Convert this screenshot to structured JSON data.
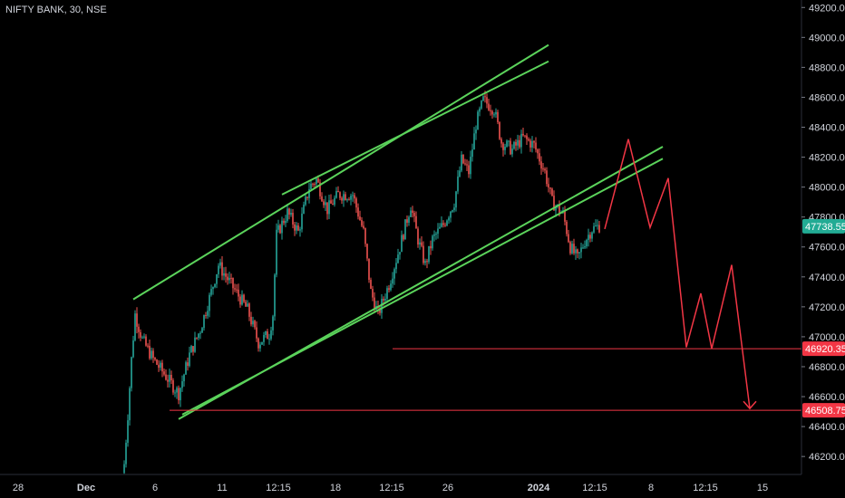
{
  "chart_data": {
    "type": "candlestick",
    "title": "NIFTY BANK, 30, NSE",
    "colors": {
      "up": "#26a69a",
      "down": "#ef5350",
      "channel": "#5bd35b",
      "projection": "#f23645",
      "background": "#000000",
      "axis_text": "#d1d4dc"
    },
    "price_axis": {
      "min": 46080,
      "max": 49250,
      "ticks": [
        46200,
        46400,
        46600,
        46800,
        47000,
        47200,
        47400,
        47600,
        47800,
        48000,
        48200,
        48400,
        48600,
        48800,
        49000,
        49200
      ]
    },
    "price_tick_labels": [
      "46200.00",
      "46400.00",
      "46600.00",
      "46800.00",
      "47000.00",
      "47200.00",
      "47400.00",
      "47600.00",
      "47800.00",
      "48000.00",
      "48200.00",
      "48400.00",
      "48600.00",
      "48800.00",
      "49000.00",
      "49200.00"
    ],
    "time_axis": {
      "labels": [
        "28",
        "Dec",
        "6",
        "11",
        "12:15",
        "18",
        "12:15",
        "26",
        "2024",
        "12:15",
        "8",
        "12:15",
        "15"
      ],
      "bold": [
        "Dec",
        "2024"
      ]
    },
    "levels": [
      {
        "price": 46920.35,
        "label": "46920.35"
      },
      {
        "price": 46508.75,
        "label": "46508.75"
      }
    ],
    "last_price": {
      "price": 47738.55,
      "label": "47738.55"
    },
    "ohlc_waypoints": [
      {
        "t": 0,
        "close": 46150
      },
      {
        "t": 2,
        "close": 46480
      },
      {
        "t": 4,
        "close": 46850
      },
      {
        "t": 6,
        "close": 47150
      },
      {
        "t": 10,
        "close": 46980
      },
      {
        "t": 16,
        "close": 46850
      },
      {
        "t": 24,
        "close": 46720
      },
      {
        "t": 30,
        "close": 46620
      },
      {
        "t": 36,
        "close": 46880
      },
      {
        "t": 42,
        "close": 47050
      },
      {
        "t": 48,
        "close": 47300
      },
      {
        "t": 52,
        "close": 47480
      },
      {
        "t": 60,
        "close": 47330
      },
      {
        "t": 68,
        "close": 47180
      },
      {
        "t": 74,
        "close": 46960
      },
      {
        "t": 80,
        "close": 47020
      },
      {
        "t": 82,
        "close": 47150
      },
      {
        "t": 84,
        "close": 47680
      },
      {
        "t": 90,
        "close": 47830
      },
      {
        "t": 96,
        "close": 47700
      },
      {
        "t": 102,
        "close": 48000
      },
      {
        "t": 106,
        "close": 48050
      },
      {
        "t": 112,
        "close": 47850
      },
      {
        "t": 118,
        "close": 47950
      },
      {
        "t": 126,
        "close": 47950
      },
      {
        "t": 132,
        "close": 47700
      },
      {
        "t": 136,
        "close": 47300
      },
      {
        "t": 140,
        "close": 47150
      },
      {
        "t": 146,
        "close": 47350
      },
      {
        "t": 152,
        "close": 47600
      },
      {
        "t": 158,
        "close": 47880
      },
      {
        "t": 162,
        "close": 47650
      },
      {
        "t": 166,
        "close": 47480
      },
      {
        "t": 170,
        "close": 47650
      },
      {
        "t": 176,
        "close": 47750
      },
      {
        "t": 182,
        "close": 47900
      },
      {
        "t": 186,
        "close": 48180
      },
      {
        "t": 190,
        "close": 48100
      },
      {
        "t": 194,
        "close": 48420
      },
      {
        "t": 198,
        "close": 48580
      },
      {
        "t": 204,
        "close": 48520
      },
      {
        "t": 208,
        "close": 48300
      },
      {
        "t": 214,
        "close": 48250
      },
      {
        "t": 220,
        "close": 48330
      },
      {
        "t": 226,
        "close": 48280
      },
      {
        "t": 232,
        "close": 48100
      },
      {
        "t": 236,
        "close": 47900
      },
      {
        "t": 242,
        "close": 47820
      },
      {
        "t": 246,
        "close": 47600
      },
      {
        "t": 250,
        "close": 47520
      },
      {
        "t": 254,
        "close": 47640
      },
      {
        "t": 258,
        "close": 47720
      },
      {
        "t": 262,
        "close": 47740
      }
    ],
    "channels": [
      {
        "name": "",
        "from": {
          "t": 5,
          "p": 47250
        },
        "to": {
          "t": 234,
          "p": 48950
        }
      },
      {
        "name": "",
        "from": {
          "t": 87,
          "p": 47950
        },
        "to": {
          "t": 234,
          "p": 48840
        }
      },
      {
        "name": "",
        "from": {
          "t": 30,
          "p": 46450
        },
        "to": {
          "t": 297,
          "p": 48270
        }
      },
      {
        "name": "",
        "from": {
          "t": 32,
          "p": 46480
        },
        "to": {
          "t": 297,
          "p": 48190
        }
      }
    ],
    "projection_path": [
      {
        "t": 265,
        "p": 47720
      },
      {
        "t": 278,
        "p": 48320
      },
      {
        "t": 290,
        "p": 47730
      },
      {
        "t": 300,
        "p": 48060
      },
      {
        "t": 310,
        "p": 46930
      },
      {
        "t": 318,
        "p": 47290
      },
      {
        "t": 324,
        "p": 46920
      },
      {
        "t": 335,
        "p": 47480
      },
      {
        "t": 345,
        "p": 46520
      }
    ]
  }
}
